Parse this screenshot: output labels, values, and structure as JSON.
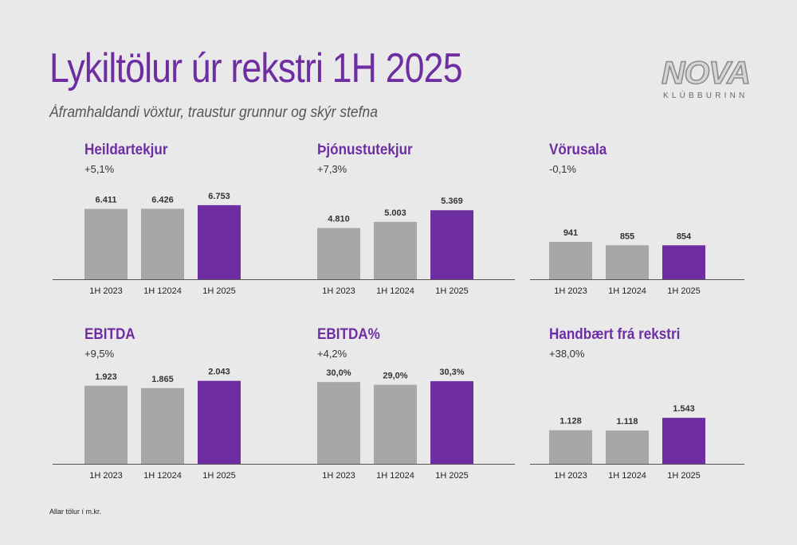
{
  "title": "Lykiltölur úr rekstri 1H 2025",
  "subtitle": "Áframhaldandi vöxtur, traustur grunnur og skýr stefna",
  "logo": {
    "word": "NOVA",
    "sub": "KLÚBBURINN"
  },
  "footnote": "Allar tölur í m.kr.",
  "colors": {
    "accent": "#6e2ea2",
    "bar_prev": "#a7a7a9",
    "bar_current": "#6e2ea2",
    "axis": "#555555"
  },
  "chart_data": [
    {
      "type": "bar",
      "title": "Heildartekjur",
      "change": "+5,1%",
      "categories": [
        "1H 2023",
        "1H 12024",
        "1H 2025"
      ],
      "values": [
        6411,
        6426,
        6753
      ],
      "labels": [
        "6.411",
        "6.426",
        "6.753"
      ],
      "ylim": [
        0,
        8700
      ]
    },
    {
      "type": "bar",
      "title": "Þjónustutekjur",
      "change": "+7,3%",
      "categories": [
        "1H 2023",
        "1H 12024",
        "1H 2025"
      ],
      "values": [
        4810,
        5003,
        5369
      ],
      "labels": [
        "4.810",
        "5.003",
        "5.369"
      ],
      "ylim": [
        3200,
        6200
      ]
    },
    {
      "type": "bar",
      "title": "Vörusala",
      "change": "-0,1%",
      "categories": [
        "1H 2023",
        "1H 12024",
        "1H 2025"
      ],
      "values": [
        941,
        855,
        854
      ],
      "labels": [
        "941",
        "855",
        "854"
      ],
      "ylim": [
        0,
        2400
      ]
    },
    {
      "type": "bar",
      "title": "EBITDA",
      "change": "+9,5%",
      "categories": [
        "1H 2023",
        "1H 12024",
        "1H 2025"
      ],
      "values": [
        1923,
        1865,
        2043
      ],
      "labels": [
        "1.923",
        "1.865",
        "2.043"
      ],
      "ylim": [
        0,
        2350
      ]
    },
    {
      "type": "bar",
      "title": "EBITDA%",
      "change": "+4,2%",
      "categories": [
        "1H 2023",
        "1H 12024",
        "1H 2025"
      ],
      "values": [
        30.0,
        29.0,
        30.3
      ],
      "labels": [
        "30,0%",
        "29,0%",
        "30,3%"
      ],
      "ylim": [
        0,
        35
      ]
    },
    {
      "type": "bar",
      "title": "Handbært frá rekstri",
      "change": "+38,0%",
      "categories": [
        "1H 2023",
        "1H 12024",
        "1H 2025"
      ],
      "values": [
        1128,
        1118,
        1543
      ],
      "labels": [
        "1.128",
        "1.118",
        "1.543"
      ],
      "ylim": [
        0,
        3200
      ]
    }
  ]
}
